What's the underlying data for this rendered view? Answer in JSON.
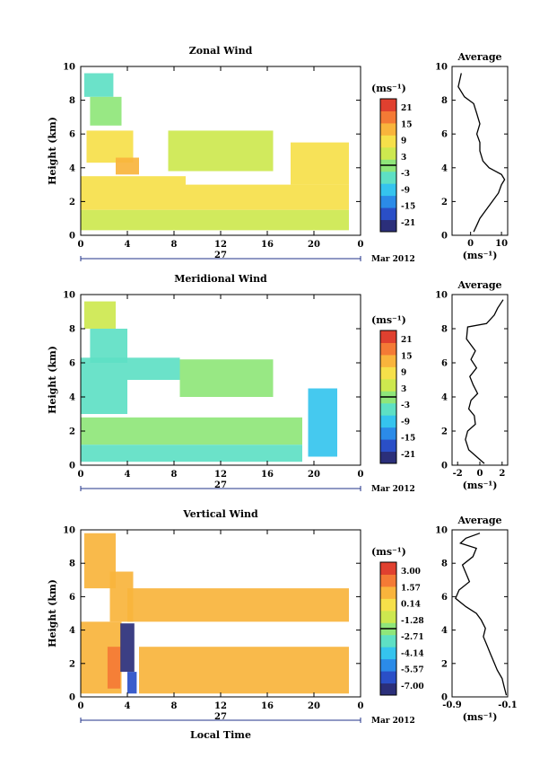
{
  "panels": [
    {
      "title": "Zonal Wind",
      "ylabel": "Height (km)",
      "x_ticks": [
        "0",
        "4",
        "8",
        "12",
        "16",
        "20",
        "0"
      ],
      "y_ticks": [
        "0",
        "2",
        "4",
        "6",
        "8",
        "10"
      ],
      "date_label": "27",
      "month_label": "Mar 2012",
      "unit_label": "(ms⁻¹)",
      "colorbar_ticks": [
        "21",
        "15",
        "9",
        "3",
        "-3",
        "-9",
        "-15",
        "-21"
      ],
      "avg_title": "Average",
      "avg_ticks": [
        "0",
        "10"
      ],
      "avg_unit": "(ms⁻¹)"
    },
    {
      "title": "Meridional Wind",
      "ylabel": "Height (km)",
      "x_ticks": [
        "0",
        "4",
        "8",
        "12",
        "16",
        "20",
        "0"
      ],
      "y_ticks": [
        "0",
        "2",
        "4",
        "6",
        "8",
        "10"
      ],
      "date_label": "27",
      "month_label": "Mar 2012",
      "unit_label": "(ms⁻¹)",
      "colorbar_ticks": [
        "21",
        "15",
        "9",
        "3",
        "-3",
        "-9",
        "-15",
        "-21"
      ],
      "avg_title": "Average",
      "avg_ticks": [
        "-2",
        "0",
        "2"
      ],
      "avg_unit": "(ms⁻¹)"
    },
    {
      "title": "Vertical Wind",
      "ylabel": "Height (km)",
      "x_ticks": [
        "0",
        "4",
        "8",
        "12",
        "16",
        "20",
        "0"
      ],
      "y_ticks": [
        "0",
        "2",
        "4",
        "6",
        "8",
        "10"
      ],
      "date_label": "27",
      "month_label": "Mar 2012",
      "unit_label": "(ms⁻¹)",
      "colorbar_ticks": [
        "3.00",
        "1.57",
        "0.14",
        "-1.28",
        "-2.71",
        "-4.14",
        "-5.57",
        "-7.00"
      ],
      "avg_title": "Average",
      "avg_ticks": [
        "-0.9",
        "-0.1"
      ],
      "avg_unit": "(ms⁻¹)",
      "xlabel": "Local Time"
    }
  ],
  "colors": {
    "colormap": [
      "#2b2f7a",
      "#2a4fc7",
      "#2b8be8",
      "#35c4ee",
      "#5ee0c4",
      "#8fe67a",
      "#cde84f",
      "#f6e04a",
      "#f9b43c",
      "#f47a35",
      "#e0402f"
    ]
  },
  "chart_data": [
    {
      "type": "heatmap",
      "title": "Zonal Wind",
      "ylabel": "Height (km)",
      "x_range": [
        0,
        24
      ],
      "ylim": [
        0,
        10
      ],
      "color_range": [
        -21,
        21
      ],
      "regions": [
        {
          "x": [
            0.3,
            2.8
          ],
          "y": [
            8.2,
            9.6
          ],
          "value": -4
        },
        {
          "x": [
            0.8,
            3.5
          ],
          "y": [
            6.5,
            8.2
          ],
          "value": -1
        },
        {
          "x": [
            0.5,
            4.5
          ],
          "y": [
            4.3,
            6.2
          ],
          "value": 7
        },
        {
          "x": [
            3.0,
            5.0
          ],
          "y": [
            3.6,
            4.6
          ],
          "value": 12
        },
        {
          "x": [
            7.5,
            16.5
          ],
          "y": [
            3.8,
            6.2
          ],
          "value": 2
        },
        {
          "x": [
            0.0,
            9.0
          ],
          "y": [
            1.5,
            3.5
          ],
          "value": 9
        },
        {
          "x": [
            9.0,
            23.0
          ],
          "y": [
            1.5,
            3.0
          ],
          "value": 6
        },
        {
          "x": [
            0.0,
            23.0
          ],
          "y": [
            0.3,
            1.5
          ],
          "value": 4
        },
        {
          "x": [
            18.0,
            23.0
          ],
          "y": [
            3.0,
            5.5
          ],
          "value": 8
        }
      ],
      "average_profile": {
        "xlim": [
          -6,
          12
        ],
        "x": [
          1,
          2,
          3,
          5,
          7,
          9,
          10,
          11,
          10,
          8,
          6,
          4,
          3,
          3,
          2,
          3,
          2,
          1,
          -2,
          -4,
          -3
        ],
        "y": [
          0.2,
          0.6,
          1.0,
          1.5,
          2.0,
          2.5,
          3.0,
          3.3,
          3.6,
          3.8,
          4.0,
          4.4,
          5.0,
          5.5,
          6.0,
          6.6,
          7.2,
          7.8,
          8.2,
          8.8,
          9.6
        ]
      }
    },
    {
      "type": "heatmap",
      "title": "Meridional Wind",
      "ylabel": "Height (km)",
      "x_range": [
        0,
        24
      ],
      "ylim": [
        0,
        10
      ],
      "color_range": [
        -21,
        21
      ],
      "regions": [
        {
          "x": [
            0.3,
            3.0
          ],
          "y": [
            8.0,
            9.6
          ],
          "value": 2
        },
        {
          "x": [
            0.8,
            4.0
          ],
          "y": [
            6.0,
            8.0
          ],
          "value": -4
        },
        {
          "x": [
            0.0,
            8.5
          ],
          "y": [
            5.0,
            6.3
          ],
          "value": -4
        },
        {
          "x": [
            8.5,
            16.5
          ],
          "y": [
            4.0,
            6.2
          ],
          "value": 1
        },
        {
          "x": [
            0.0,
            4.0
          ],
          "y": [
            3.0,
            5.0
          ],
          "value": -3
        },
        {
          "x": [
            0.0,
            19.0
          ],
          "y": [
            1.2,
            2.8
          ],
          "value": -1
        },
        {
          "x": [
            0.0,
            19.0
          ],
          "y": [
            0.2,
            1.2
          ],
          "value": -2
        },
        {
          "x": [
            19.5,
            22.0
          ],
          "y": [
            0.5,
            4.5
          ],
          "value": -6
        }
      ],
      "average_profile": {
        "xlim": [
          -2.5,
          2.5
        ],
        "x": [
          0.4,
          -0.3,
          -1.0,
          -1.3,
          -1.1,
          -0.4,
          -0.5,
          -1.0,
          -0.8,
          -0.2,
          -0.6,
          -0.9,
          -0.3,
          -0.8,
          -0.4,
          -1.2,
          -1.1,
          0.6,
          1.3,
          1.6,
          2.1
        ],
        "y": [
          0.1,
          0.5,
          0.9,
          1.5,
          2.0,
          2.4,
          2.9,
          3.3,
          3.8,
          4.2,
          4.7,
          5.2,
          5.7,
          6.2,
          6.7,
          7.4,
          8.1,
          8.3,
          8.8,
          9.2,
          9.7
        ]
      }
    },
    {
      "type": "heatmap",
      "title": "Vertical Wind",
      "xlabel": "Local Time",
      "ylabel": "Height (km)",
      "x_range": [
        0,
        24
      ],
      "ylim": [
        0,
        10
      ],
      "color_range": [
        -7.0,
        3.0
      ],
      "regions": [
        {
          "x": [
            0.3,
            3.0
          ],
          "y": [
            6.5,
            9.8
          ],
          "value": 0.8
        },
        {
          "x": [
            2.5,
            4.5
          ],
          "y": [
            4.5,
            7.5
          ],
          "value": 0.6
        },
        {
          "x": [
            4.0,
            23.0
          ],
          "y": [
            4.5,
            6.5
          ],
          "value": 0.4
        },
        {
          "x": [
            0.0,
            3.5
          ],
          "y": [
            0.2,
            4.5
          ],
          "value": 0.5
        },
        {
          "x": [
            2.3,
            3.4
          ],
          "y": [
            0.5,
            3.0
          ],
          "value": 1.6
        },
        {
          "x": [
            3.4,
            4.6
          ],
          "y": [
            1.5,
            4.4
          ],
          "value": -6.5
        },
        {
          "x": [
            4.0,
            4.8
          ],
          "y": [
            0.2,
            1.5
          ],
          "value": -5.2
        },
        {
          "x": [
            5.0,
            23.0
          ],
          "y": [
            0.2,
            3.0
          ],
          "value": 0.5
        }
      ],
      "average_profile": {
        "xlim": [
          -0.9,
          -0.1
        ],
        "x": [
          -0.12,
          -0.15,
          -0.18,
          -0.25,
          -0.3,
          -0.35,
          -0.4,
          -0.45,
          -0.42,
          -0.48,
          -0.55,
          -0.7,
          -0.85,
          -0.8,
          -0.65,
          -0.7,
          -0.75,
          -0.6,
          -0.55,
          -0.78,
          -0.7,
          -0.5
        ],
        "y": [
          0.1,
          0.6,
          1.1,
          1.6,
          2.1,
          2.6,
          3.1,
          3.6,
          4.1,
          4.6,
          5.0,
          5.4,
          5.9,
          6.4,
          6.9,
          7.4,
          7.9,
          8.4,
          8.9,
          9.2,
          9.5,
          9.8
        ]
      }
    }
  ]
}
